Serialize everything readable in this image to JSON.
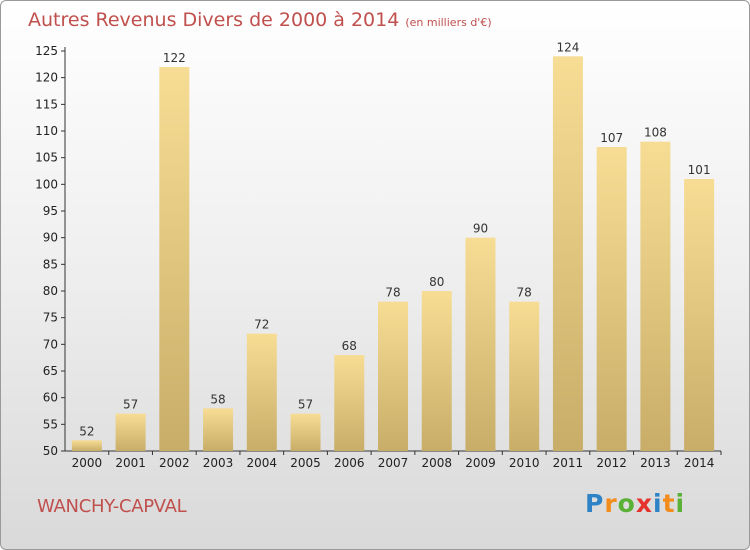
{
  "header": {
    "title": "Autres Revenus Divers de 2000 à 2014",
    "unit": "(en milliers d'€)"
  },
  "footer": {
    "commune": "WANCHY-CAPVAL",
    "logo_text": "Proxiti"
  },
  "colors": {
    "title": "#c0504d",
    "bar_light": "#f7dd94",
    "bar_dark": "#c8ad68",
    "logo_p": "#2e82c6",
    "logo_r": "#f28c1b",
    "logo_o": "#59b135",
    "logo_x": "#e5322d",
    "logo_i": "#2e82c6",
    "logo_t": "#f28c1b",
    "logo_i2": "#59b135"
  },
  "chart_data": {
    "type": "bar",
    "title": "Autres Revenus Divers de 2000 à 2014",
    "subtitle": "(en milliers d'€)",
    "categories": [
      "2000",
      "2001",
      "2002",
      "2003",
      "2004",
      "2005",
      "2006",
      "2007",
      "2008",
      "2009",
      "2010",
      "2011",
      "2012",
      "2013",
      "2014"
    ],
    "values": [
      52,
      57,
      122,
      58,
      72,
      57,
      68,
      78,
      80,
      90,
      78,
      124,
      107,
      108,
      101
    ],
    "ylim": [
      50,
      125
    ],
    "yticks": [
      50,
      55,
      60,
      65,
      70,
      75,
      80,
      85,
      90,
      95,
      100,
      105,
      110,
      115,
      120,
      125
    ],
    "grid": false,
    "data_labels": true
  }
}
